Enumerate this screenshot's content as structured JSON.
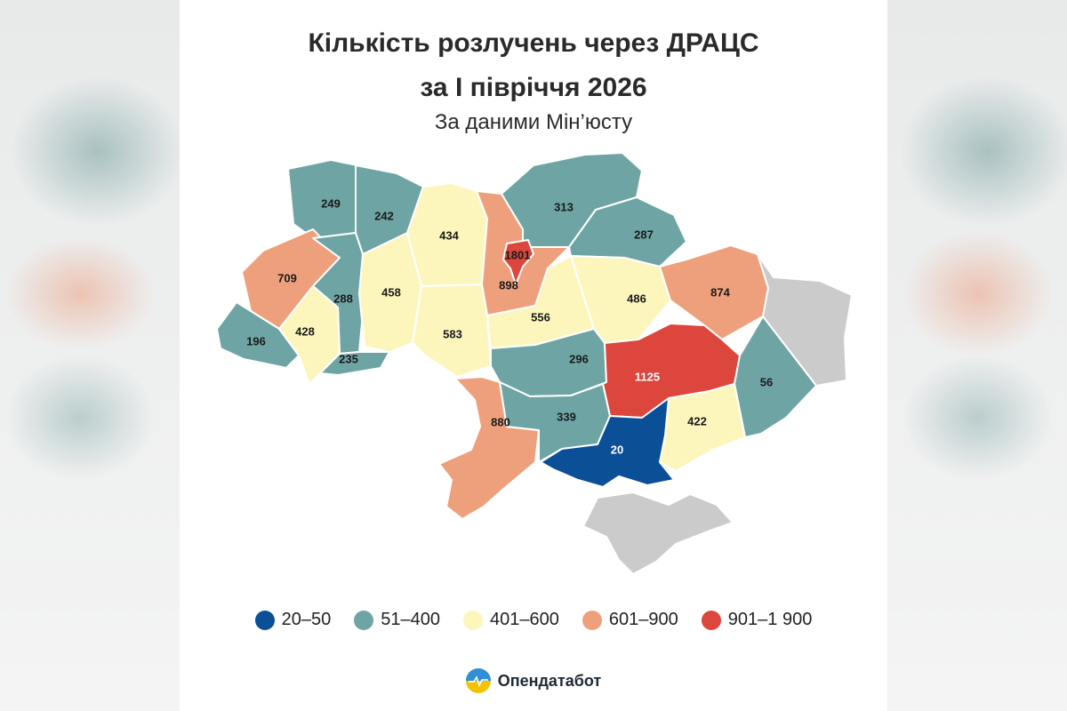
{
  "title_line1": "Кількість розлучень через ДРАЦС",
  "title_line2": "за І півріччя 2026",
  "subtitle": "За даними Мін’юсту",
  "brand": "Опендатабот",
  "colors": {
    "bin1": "#0b4f96",
    "bin2": "#6ea5a4",
    "bin3": "#fcf6bd",
    "bin4": "#eea07c",
    "bin5": "#dc463d",
    "occupied": "#cbcbcb"
  },
  "legend": [
    {
      "label": "20–50",
      "color_key": "bin1"
    },
    {
      "label": "51–400",
      "color_key": "bin2"
    },
    {
      "label": "401–600",
      "color_key": "bin3"
    },
    {
      "label": "601–900",
      "color_key": "bin4"
    },
    {
      "label": "901–1 900",
      "color_key": "bin5"
    }
  ],
  "regions": [
    {
      "id": "volyn",
      "value": "249",
      "color_key": "bin2"
    },
    {
      "id": "rivne",
      "value": "242",
      "color_key": "bin2"
    },
    {
      "id": "zhytomyr",
      "value": "434",
      "color_key": "bin3"
    },
    {
      "id": "kyiv-oblast",
      "value": "898",
      "color_key": "bin4"
    },
    {
      "id": "kyiv-city",
      "value": "1801",
      "color_key": "bin5"
    },
    {
      "id": "chernihiv",
      "value": "313",
      "color_key": "bin2"
    },
    {
      "id": "sumy",
      "value": "287",
      "color_key": "bin2"
    },
    {
      "id": "lviv",
      "value": "709",
      "color_key": "bin4"
    },
    {
      "id": "ternopil",
      "value": "288",
      "color_key": "bin2"
    },
    {
      "id": "khmelnytskyi",
      "value": "458",
      "color_key": "bin3"
    },
    {
      "id": "vinnytsia",
      "value": "583",
      "color_key": "bin3"
    },
    {
      "id": "cherkasy",
      "value": "556",
      "color_key": "bin3"
    },
    {
      "id": "poltava",
      "value": "486",
      "color_key": "bin3"
    },
    {
      "id": "kharkiv",
      "value": "874",
      "color_key": "bin4"
    },
    {
      "id": "zakarpattia",
      "value": "196",
      "color_key": "bin2"
    },
    {
      "id": "ivano-frankivsk",
      "value": "428",
      "color_key": "bin3"
    },
    {
      "id": "chernivtsi",
      "value": "235",
      "color_key": "bin2"
    },
    {
      "id": "kirovohrad",
      "value": "296",
      "color_key": "bin2"
    },
    {
      "id": "dnipropetrovsk",
      "value": "1125",
      "color_key": "bin5"
    },
    {
      "id": "donetsk",
      "value": "56",
      "color_key": "bin2"
    },
    {
      "id": "odesa",
      "value": "880",
      "color_key": "bin4"
    },
    {
      "id": "mykolaiv",
      "value": "339",
      "color_key": "bin2"
    },
    {
      "id": "zaporizhzhia",
      "value": "422",
      "color_key": "bin3"
    },
    {
      "id": "kherson",
      "value": "20",
      "color_key": "bin1"
    },
    {
      "id": "luhansk",
      "value": "",
      "color_key": "occupied"
    },
    {
      "id": "crimea",
      "value": "",
      "color_key": "occupied"
    }
  ]
}
